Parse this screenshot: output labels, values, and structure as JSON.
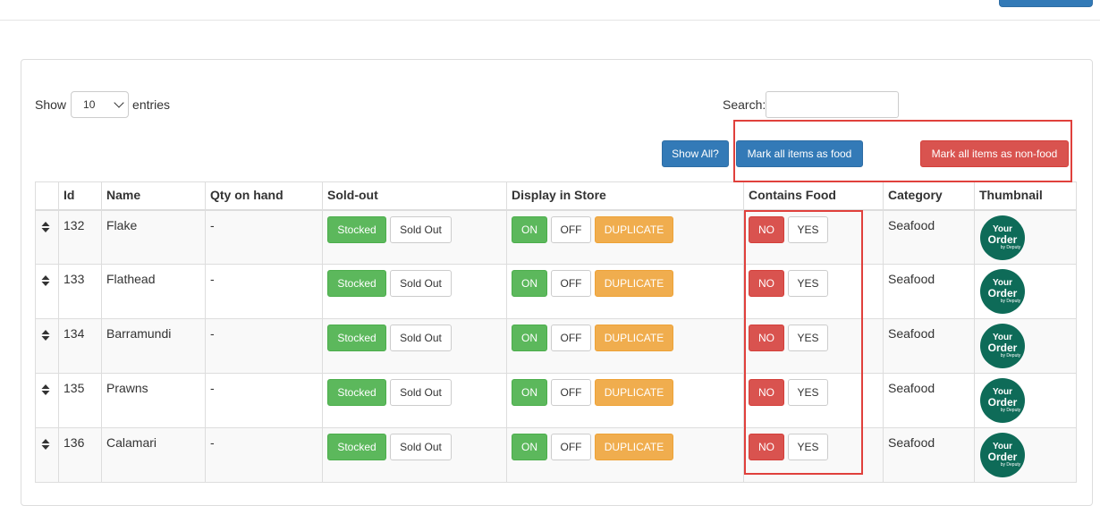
{
  "length_menu": {
    "show_label": "Show",
    "value": "10",
    "entries_label": "entries"
  },
  "search": {
    "label": "Search:",
    "value": ""
  },
  "actions": {
    "show_all": "Show All?",
    "mark_food": "Mark all items as food",
    "mark_non_food": "Mark all items as non-food"
  },
  "columns": [
    "",
    "Id",
    "Name",
    "Qty on hand",
    "Sold-out",
    "Display in Store",
    "Contains Food",
    "Category",
    "Thumbnail"
  ],
  "row_buttons": {
    "stocked": "Stocked",
    "sold_out": "Sold Out",
    "on": "ON",
    "off": "OFF",
    "duplicate": "DUPLICATE",
    "no": "NO",
    "yes": "YES"
  },
  "thumbnail": {
    "line1": "Your",
    "line2": "Order",
    "line3": "by Deputy"
  },
  "rows": [
    {
      "id": "132",
      "name": "Flake",
      "qty": "-",
      "category": "Seafood"
    },
    {
      "id": "133",
      "name": "Flathead",
      "qty": "-",
      "category": "Seafood"
    },
    {
      "id": "134",
      "name": "Barramundi",
      "qty": "-",
      "category": "Seafood"
    },
    {
      "id": "135",
      "name": "Prawns",
      "qty": "-",
      "category": "Seafood"
    },
    {
      "id": "136",
      "name": "Calamari",
      "qty": "-",
      "category": "Seafood"
    }
  ],
  "colors": {
    "primary": "#337ab7",
    "danger": "#d9534f",
    "success": "#5cb85c",
    "warning": "#f0ad4e",
    "highlight": "#e0403c",
    "thumbnail": "#0e6b58"
  },
  "icons": {
    "sort": "sort-arrows-icon",
    "select": "chevron-down-icon"
  }
}
